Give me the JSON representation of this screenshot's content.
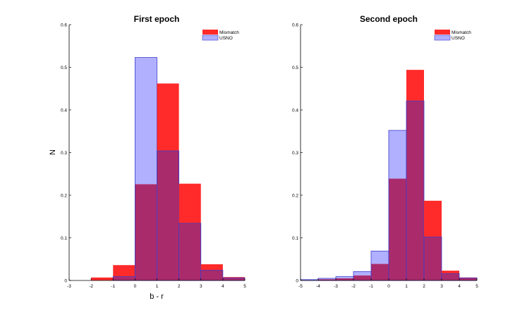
{
  "chart_data": [
    {
      "type": "bar",
      "title": "First epoch",
      "xlabel": "b - r",
      "ylabel": "N",
      "xlim": [
        -3,
        5
      ],
      "ylim": [
        0,
        0.6
      ],
      "x_ticks": [
        -3,
        -2,
        -1,
        0,
        1,
        2,
        3,
        4,
        5
      ],
      "y_ticks": [
        0,
        0.1,
        0.2,
        0.3,
        0.4,
        0.5,
        0.6
      ],
      "bin_edges": [
        -3,
        -2,
        -1,
        0,
        1,
        2,
        3,
        4,
        5
      ],
      "legend_position": "top-right",
      "series": [
        {
          "name": "Mismatch",
          "color": "#ff2a2a",
          "values": [
            0.0,
            0.007,
            0.036,
            0.226,
            0.462,
            0.227,
            0.038,
            0.008
          ]
        },
        {
          "name": "USNO",
          "color": "#b0b0ff",
          "values": [
            0.0,
            0.0,
            0.009,
            0.523,
            0.304,
            0.134,
            0.024,
            0.006
          ]
        }
      ]
    },
    {
      "type": "bar",
      "title": "Second epoch",
      "xlabel": "",
      "ylabel": "",
      "xlim": [
        -5,
        5
      ],
      "ylim": [
        0,
        0.6
      ],
      "x_ticks": [
        -5,
        -4,
        -3,
        -2,
        -1,
        0,
        1,
        2,
        3,
        4,
        5
      ],
      "y_ticks": [
        0,
        0.1,
        0.2,
        0.3,
        0.4,
        0.5,
        0.6
      ],
      "bin_edges": [
        -5,
        -4,
        -3,
        -2,
        -1,
        0,
        1,
        2,
        3,
        4,
        5
      ],
      "legend_position": "top-right",
      "series": [
        {
          "name": "Mismatch",
          "color": "#ff2a2a",
          "values": [
            0.001,
            0.003,
            0.005,
            0.012,
            0.039,
            0.239,
            0.494,
            0.187,
            0.023,
            0.007
          ]
        },
        {
          "name": "USNO",
          "color": "#b0b0ff",
          "values": [
            0.002,
            0.005,
            0.009,
            0.021,
            0.069,
            0.352,
            0.421,
            0.102,
            0.016,
            0.006
          ]
        }
      ]
    }
  ],
  "colors": {
    "overlap": "#aa2b6b",
    "usno_edge": "#3c3ccc",
    "axis": "#000000"
  }
}
